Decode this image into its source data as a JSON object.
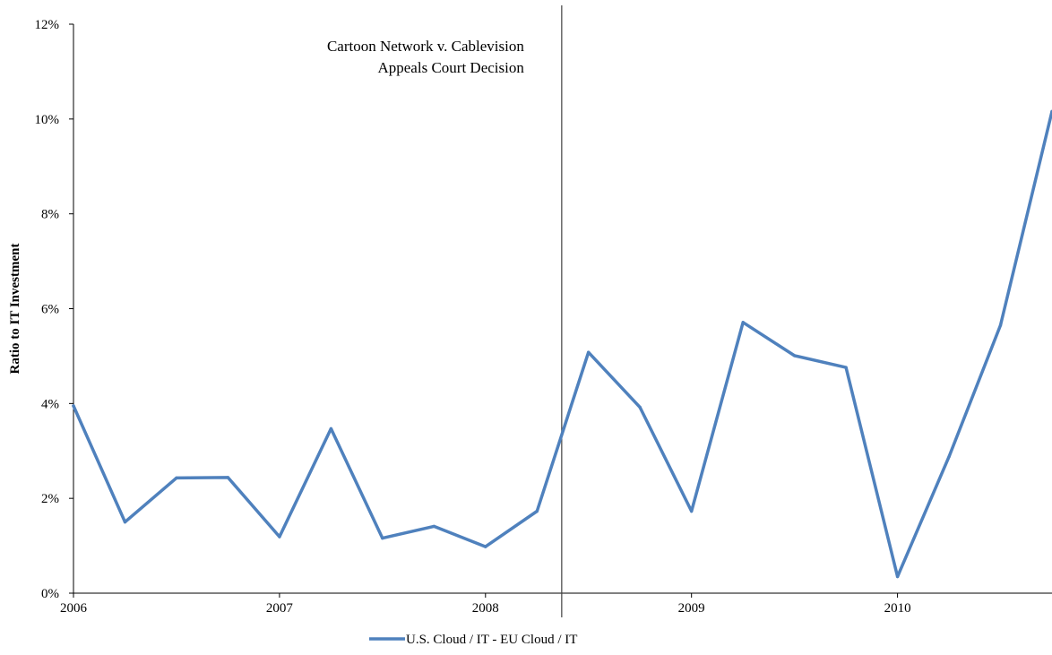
{
  "chart_data": {
    "type": "line",
    "title": "",
    "xlabel": "",
    "ylabel": "Ratio to IT Investment",
    "xlim": [
      2006,
      2010.75
    ],
    "ylim": [
      0,
      12
    ],
    "y_unit": "%",
    "y_ticks": [
      "0%",
      "2%",
      "4%",
      "6%",
      "8%",
      "10%",
      "12%"
    ],
    "x_ticks": [
      "2006",
      "2007",
      "2008",
      "2009",
      "2010"
    ],
    "grid": false,
    "legend_position": "bottom-center",
    "series": [
      {
        "name": "U.S. Cloud / IT - EU Cloud / IT",
        "color": "#4f81bd",
        "x": [
          2006,
          2006.25,
          2006.5,
          2006.75,
          2007,
          2007.25,
          2007.5,
          2007.75,
          2008,
          2008.25,
          2008.5,
          2008.75,
          2009,
          2009.25,
          2009.5,
          2009.75,
          2010,
          2010.25,
          2010.5,
          2010.75
        ],
        "y": [
          3.95,
          1.5,
          2.43,
          2.44,
          1.19,
          3.47,
          1.16,
          1.41,
          0.98,
          1.73,
          5.08,
          3.92,
          1.73,
          5.71,
          5.01,
          4.76,
          0.35,
          2.88,
          5.65,
          10.16
        ]
      }
    ],
    "annotations": [
      {
        "kind": "vertical-line",
        "x": 2008.37,
        "color": "#404040",
        "text_lines": [
          "Cartoon Network  v. Cablevision",
          "Appeals Court Decision"
        ]
      }
    ]
  }
}
